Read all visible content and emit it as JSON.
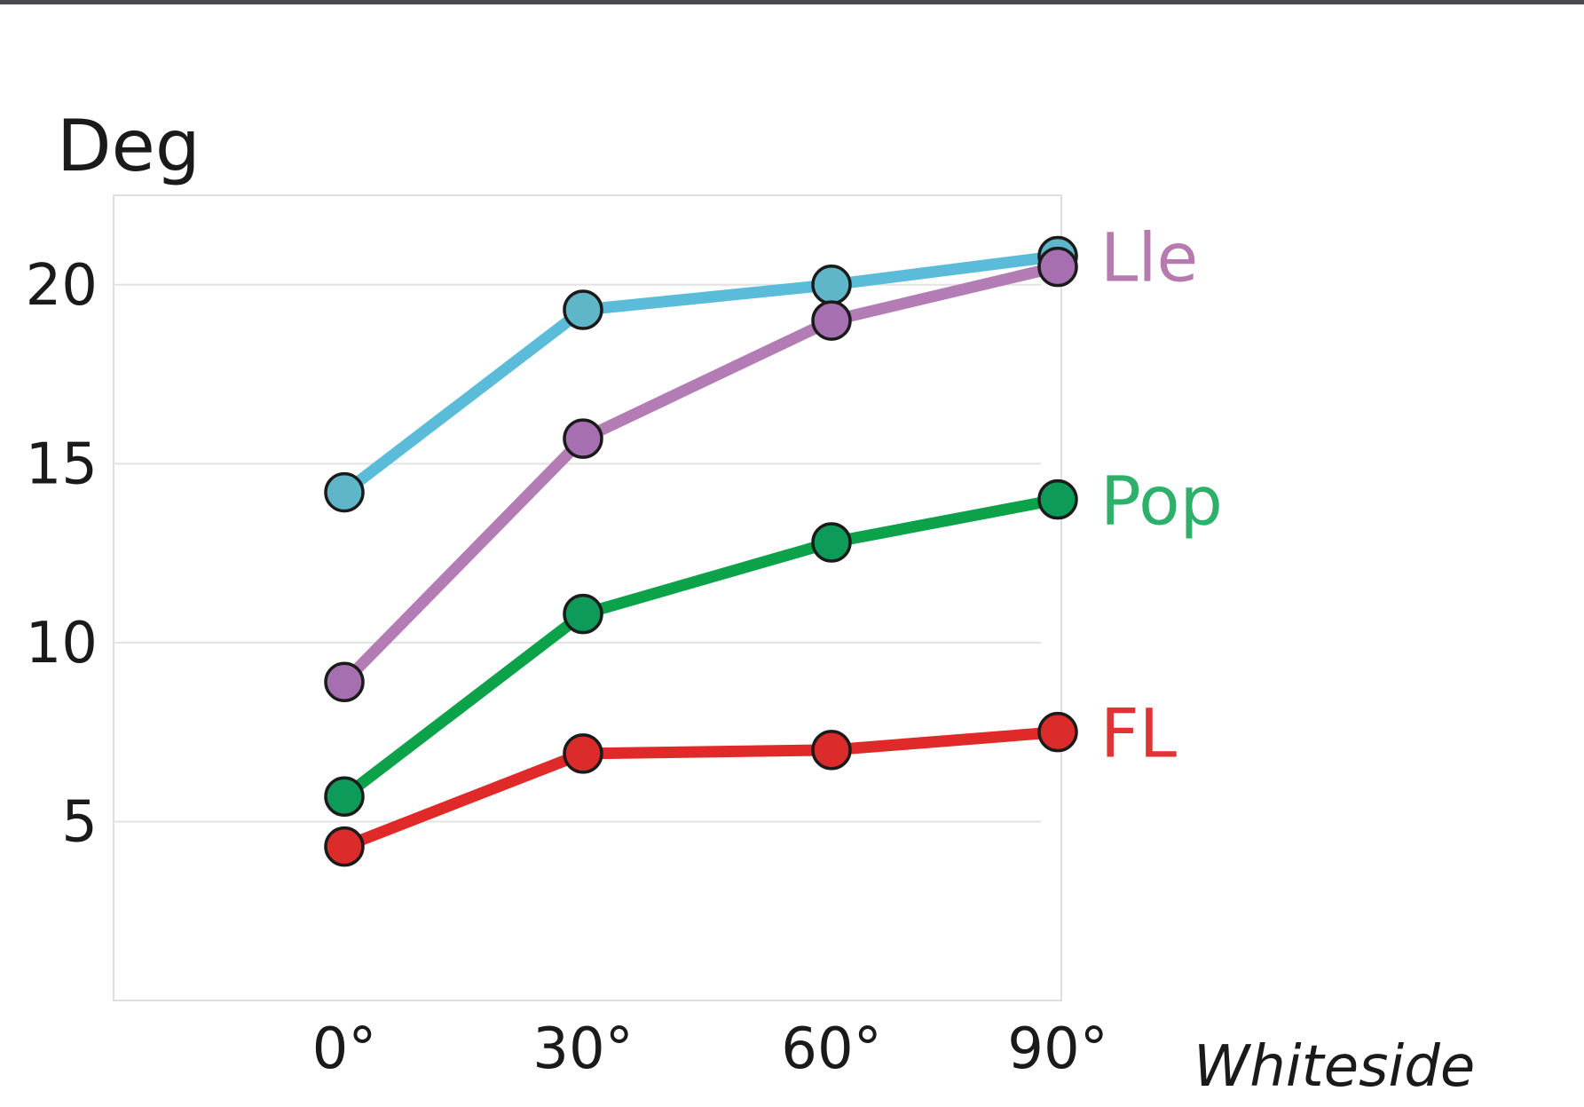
{
  "chart_data": {
    "type": "line",
    "title": "",
    "ylabel": "Deg",
    "xlabel": "Whiteside",
    "x": [
      "0°",
      "30°",
      "60°",
      "90°"
    ],
    "ylim": [
      0,
      22.5
    ],
    "yticks": [
      5,
      10,
      15,
      20
    ],
    "grid": true,
    "series": [
      {
        "name": "Lle",
        "label_color": "#b77aae",
        "line_color": "#5bbcd9",
        "marker_color": "#5fb6c9",
        "values": [
          14.2,
          19.3,
          20.0,
          20.8
        ]
      },
      {
        "name": "",
        "label_color": "#b77aae",
        "line_color": "#b47cb4",
        "marker_color": "#a66fb0",
        "values": [
          8.9,
          15.7,
          19.0,
          20.5
        ]
      },
      {
        "name": "Pop",
        "label_color": "#2eb06a",
        "line_color": "#0ba24a",
        "marker_color": "#0e9a58",
        "values": [
          5.7,
          10.8,
          12.8,
          14.0
        ]
      },
      {
        "name": "FL",
        "label_color": "#e03333",
        "line_color": "#e02a2a",
        "marker_color": "#db2b2b",
        "values": [
          4.3,
          6.9,
          7.0,
          7.5
        ]
      }
    ]
  }
}
